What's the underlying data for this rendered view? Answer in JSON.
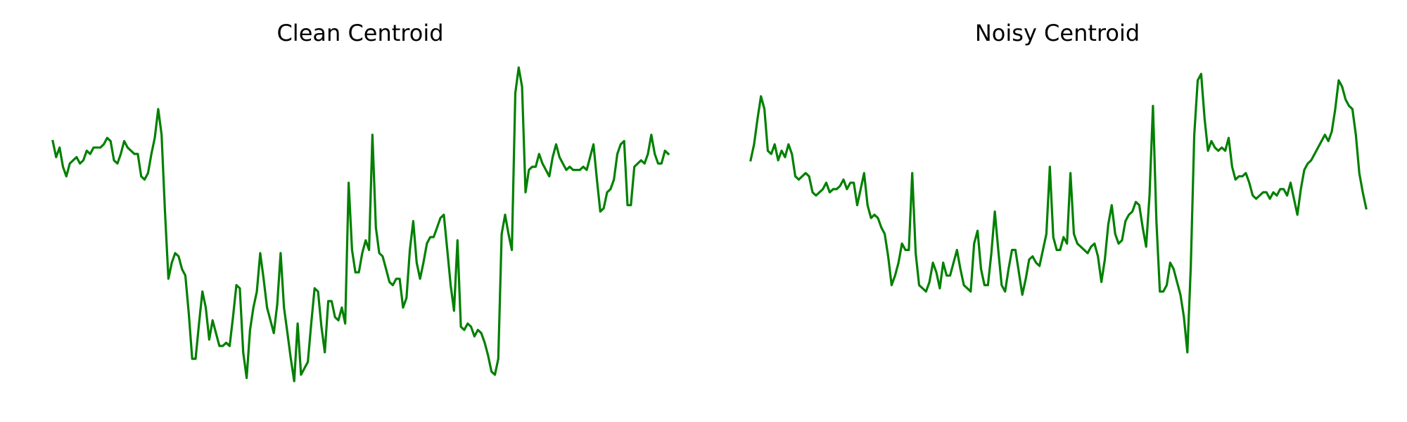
{
  "chart_data": [
    {
      "type": "line",
      "title": "Clean Centroid",
      "xlabel": "",
      "ylabel": "",
      "axes_visible": false,
      "grid": false,
      "ylim": [
        0,
        1
      ],
      "series": [
        {
          "color": "#008000",
          "values": [
            0.77,
            0.72,
            0.75,
            0.69,
            0.66,
            0.7,
            0.71,
            0.72,
            0.7,
            0.71,
            0.74,
            0.73,
            0.75,
            0.75,
            0.75,
            0.76,
            0.78,
            0.77,
            0.71,
            0.7,
            0.73,
            0.77,
            0.75,
            0.74,
            0.73,
            0.73,
            0.66,
            0.65,
            0.67,
            0.73,
            0.78,
            0.87,
            0.79,
            0.55,
            0.34,
            0.39,
            0.42,
            0.41,
            0.37,
            0.35,
            0.23,
            0.09,
            0.09,
            0.2,
            0.3,
            0.25,
            0.15,
            0.21,
            0.17,
            0.13,
            0.13,
            0.14,
            0.13,
            0.22,
            0.32,
            0.31,
            0.11,
            0.03,
            0.18,
            0.25,
            0.3,
            0.42,
            0.34,
            0.25,
            0.21,
            0.17,
            0.26,
            0.42,
            0.25,
            0.17,
            0.09,
            0.02,
            0.2,
            0.04,
            0.06,
            0.08,
            0.2,
            0.31,
            0.3,
            0.19,
            0.11,
            0.27,
            0.27,
            0.22,
            0.21,
            0.25,
            0.2,
            0.64,
            0.43,
            0.36,
            0.36,
            0.42,
            0.46,
            0.43,
            0.79,
            0.5,
            0.42,
            0.41,
            0.37,
            0.33,
            0.32,
            0.34,
            0.34,
            0.25,
            0.28,
            0.43,
            0.52,
            0.39,
            0.34,
            0.39,
            0.45,
            0.47,
            0.47,
            0.5,
            0.53,
            0.54,
            0.43,
            0.32,
            0.24,
            0.46,
            0.19,
            0.18,
            0.2,
            0.19,
            0.16,
            0.18,
            0.17,
            0.14,
            0.1,
            0.05,
            0.04,
            0.09,
            0.48,
            0.54,
            0.48,
            0.43,
            0.92,
            1.0,
            0.94,
            0.61,
            0.68,
            0.69,
            0.69,
            0.73,
            0.7,
            0.68,
            0.66,
            0.72,
            0.76,
            0.72,
            0.7,
            0.68,
            0.69,
            0.68,
            0.68,
            0.68,
            0.69,
            0.68,
            0.72,
            0.76,
            0.65,
            0.55,
            0.56,
            0.61,
            0.62,
            0.65,
            0.73,
            0.76,
            0.77,
            0.57,
            0.57,
            0.69,
            0.7,
            0.71,
            0.7,
            0.73,
            0.79,
            0.73,
            0.7,
            0.7,
            0.74,
            0.73
          ]
        }
      ]
    },
    {
      "type": "line",
      "title": "Noisy Centroid",
      "xlabel": "",
      "ylabel": "",
      "axes_visible": false,
      "grid": false,
      "ylim": [
        0,
        1
      ],
      "series": [
        {
          "color": "#008000",
          "values": [
            0.71,
            0.76,
            0.84,
            0.91,
            0.87,
            0.74,
            0.73,
            0.76,
            0.71,
            0.74,
            0.72,
            0.76,
            0.73,
            0.66,
            0.65,
            0.66,
            0.67,
            0.66,
            0.61,
            0.6,
            0.61,
            0.62,
            0.64,
            0.61,
            0.62,
            0.62,
            0.63,
            0.65,
            0.62,
            0.64,
            0.64,
            0.57,
            0.62,
            0.67,
            0.57,
            0.53,
            0.54,
            0.53,
            0.5,
            0.48,
            0.41,
            0.32,
            0.35,
            0.39,
            0.45,
            0.43,
            0.43,
            0.67,
            0.42,
            0.32,
            0.31,
            0.3,
            0.33,
            0.39,
            0.36,
            0.31,
            0.39,
            0.35,
            0.35,
            0.39,
            0.43,
            0.37,
            0.32,
            0.31,
            0.3,
            0.45,
            0.49,
            0.37,
            0.32,
            0.32,
            0.42,
            0.55,
            0.43,
            0.32,
            0.3,
            0.37,
            0.43,
            0.43,
            0.36,
            0.29,
            0.34,
            0.4,
            0.41,
            0.39,
            0.38,
            0.43,
            0.48,
            0.69,
            0.47,
            0.43,
            0.43,
            0.47,
            0.45,
            0.67,
            0.48,
            0.45,
            0.44,
            0.43,
            0.42,
            0.44,
            0.45,
            0.41,
            0.33,
            0.4,
            0.51,
            0.57,
            0.48,
            0.45,
            0.46,
            0.52,
            0.54,
            0.55,
            0.58,
            0.57,
            0.5,
            0.44,
            0.6,
            0.88,
            0.52,
            0.3,
            0.3,
            0.32,
            0.39,
            0.37,
            0.33,
            0.29,
            0.22,
            0.11,
            0.38,
            0.79,
            0.96,
            0.98,
            0.84,
            0.74,
            0.77,
            0.75,
            0.74,
            0.75,
            0.74,
            0.78,
            0.69,
            0.65,
            0.66,
            0.66,
            0.67,
            0.64,
            0.6,
            0.59,
            0.6,
            0.61,
            0.61,
            0.59,
            0.61,
            0.6,
            0.62,
            0.62,
            0.6,
            0.64,
            0.59,
            0.54,
            0.62,
            0.68,
            0.7,
            0.71,
            0.73,
            0.75,
            0.77,
            0.79,
            0.77,
            0.8,
            0.87,
            0.96,
            0.94,
            0.9,
            0.88,
            0.87,
            0.79,
            0.67,
            0.61,
            0.56
          ]
        }
      ]
    }
  ]
}
